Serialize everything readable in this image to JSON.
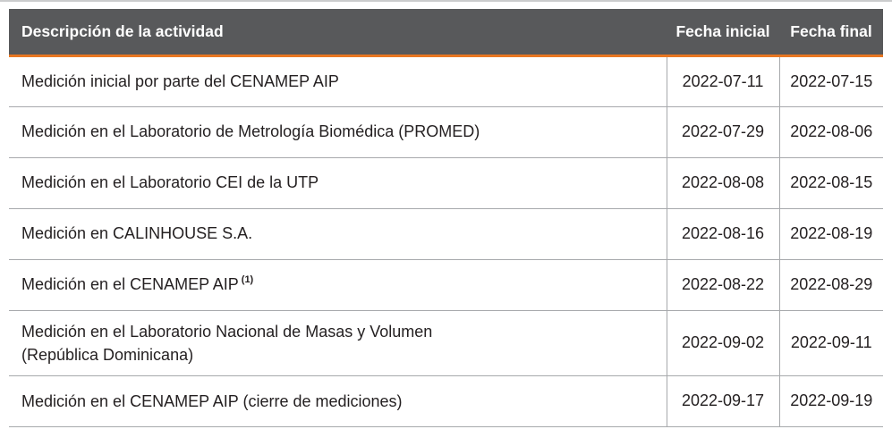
{
  "colors": {
    "header_bg": "#58595B",
    "header_text": "#FFFFFF",
    "accent_orange": "#E87722",
    "border_gray": "#A7A9AC",
    "body_text": "#231F20"
  },
  "table": {
    "columns": [
      "Descripción de la actividad",
      "Fecha inicial",
      "Fecha final"
    ],
    "rows": [
      {
        "description": "Medición inicial por parte del CENAMEP AIP",
        "note": "",
        "fecha_inicial": "2022-07-11",
        "fecha_final": "2022-07-15"
      },
      {
        "description": "Medición en el Laboratorio de Metrología Biomédica (PROMED)",
        "note": "",
        "fecha_inicial": "2022-07-29",
        "fecha_final": "2022-08-06"
      },
      {
        "description": "Medición en el Laboratorio CEI de la UTP",
        "note": "",
        "fecha_inicial": "2022-08-08",
        "fecha_final": "2022-08-15"
      },
      {
        "description": "Medición en CALINHOUSE S.A.",
        "note": "",
        "fecha_inicial": "2022-08-16",
        "fecha_final": "2022-08-19"
      },
      {
        "description": "Medición en el CENAMEP AIP",
        "note": "(1)",
        "fecha_inicial": "2022-08-22",
        "fecha_final": "2022-08-29"
      },
      {
        "description": "Medición en el Laboratorio Nacional de Masas y Volumen\n(República Dominicana)",
        "note": "",
        "fecha_inicial": "2022-09-02",
        "fecha_final": "2022-09-11"
      },
      {
        "description": "Medición en el CENAMEP AIP (cierre de mediciones)",
        "note": "",
        "fecha_inicial": "2022-09-17",
        "fecha_final": "2022-09-19"
      }
    ]
  }
}
